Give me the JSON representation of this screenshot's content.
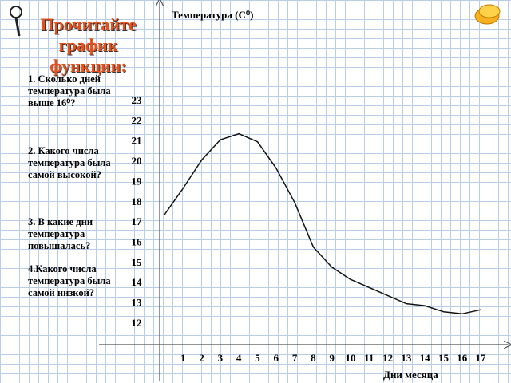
{
  "heading": "Прочитайте график функции:",
  "questions": [
    "1. Сколько дней температура была выше 16⁰?",
    "2. Какого числа температура была самой высокой?",
    "3. В какие дни температура повышалась?",
    "4.Какого числа температура была самой низкой?"
  ],
  "chart_data": {
    "type": "line",
    "title": "Температура (С⁰)",
    "x_label": "Дни месяца",
    "x": [
      0,
      1,
      2,
      3,
      4,
      5,
      6,
      7,
      8,
      9,
      10,
      11,
      12,
      13,
      14,
      15,
      16,
      17
    ],
    "series": [
      {
        "color": "#111111",
        "values": [
          17.4,
          18.7,
          20.1,
          21.1,
          21.4,
          21.0,
          19.7,
          18.0,
          15.8,
          14.8,
          14.2,
          13.8,
          13.4,
          13.0,
          12.9,
          12.6,
          12.5,
          12.7
        ]
      }
    ],
    "xlim": [
      -3.5,
      18.5
    ],
    "xticks": [
      1,
      2,
      3,
      4,
      5,
      6,
      7,
      8,
      9,
      10,
      11,
      12,
      13,
      14,
      15,
      16,
      17
    ],
    "ylim": [
      11,
      28
    ],
    "yticks": [
      12,
      13,
      14,
      15,
      16,
      17,
      18,
      19,
      20,
      21,
      22,
      23
    ]
  }
}
